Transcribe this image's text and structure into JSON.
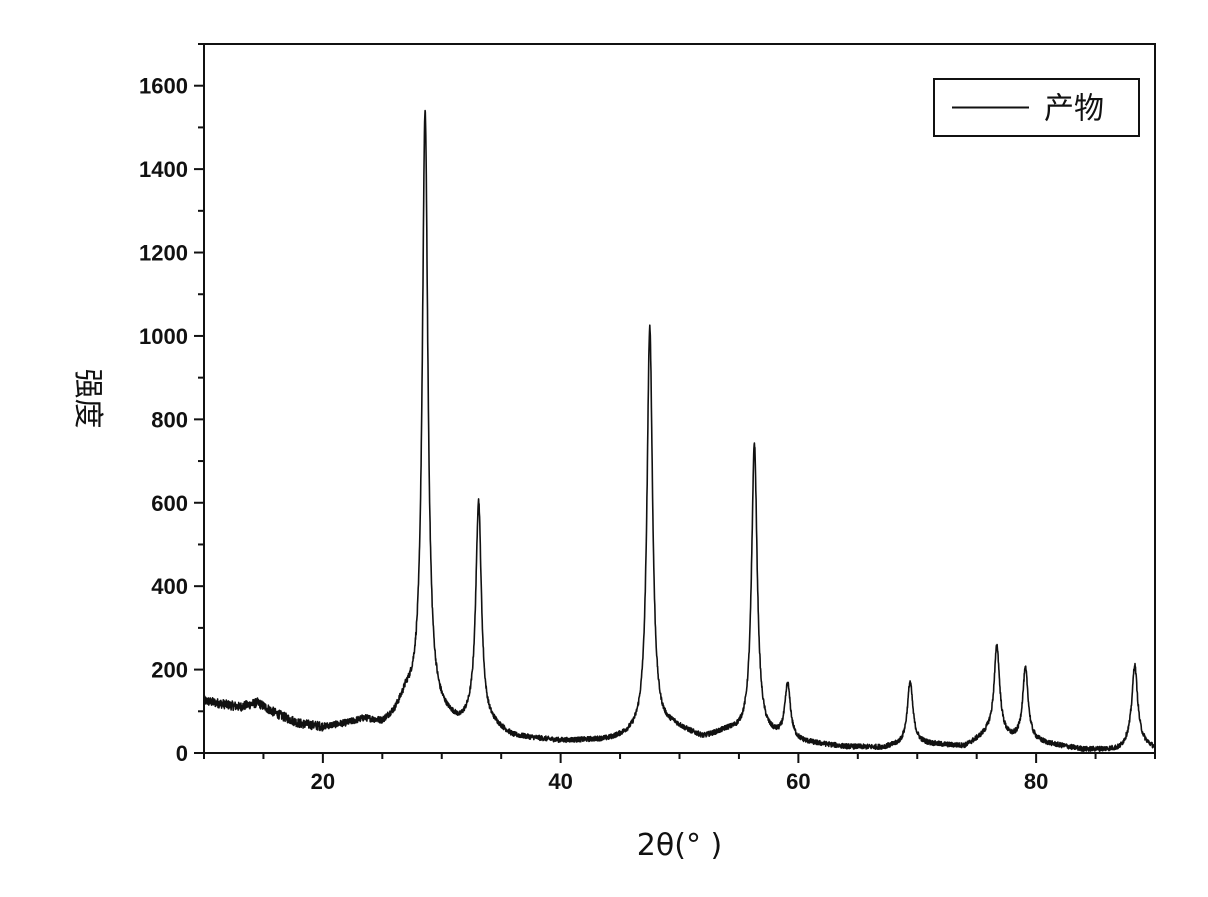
{
  "chart_data": {
    "type": "line",
    "title": "",
    "xlabel": "2θ(° )",
    "ylabel": "强度",
    "xlim": [
      10,
      90
    ],
    "ylim": [
      0,
      1700
    ],
    "x_ticks": [
      20,
      40,
      60,
      80
    ],
    "x_ticks_minor_step": 5,
    "y_ticks": [
      0,
      200,
      400,
      600,
      800,
      1000,
      1200,
      1400,
      1600
    ],
    "y_ticks_minor_step": 100,
    "grid": false,
    "legend": {
      "position": "top-right",
      "entries": [
        "产物"
      ]
    },
    "series": [
      {
        "name": "产物",
        "color": "#111111",
        "baseline": [
          [
            10,
            125
          ],
          [
            12,
            115
          ],
          [
            13,
            110
          ],
          [
            14.5,
            120
          ],
          [
            16,
            95
          ],
          [
            18,
            70
          ],
          [
            20,
            62
          ],
          [
            22,
            70
          ],
          [
            23.5,
            80
          ],
          [
            25,
            70
          ],
          [
            26,
            90
          ],
          [
            27,
            130
          ],
          [
            30.5,
            80
          ],
          [
            31.5,
            65
          ],
          [
            32.5,
            75
          ],
          [
            34.5,
            60
          ],
          [
            36,
            38
          ],
          [
            40,
            28
          ],
          [
            44,
            30
          ],
          [
            46,
            40
          ],
          [
            49.5,
            60
          ],
          [
            52,
            35
          ],
          [
            54,
            50
          ],
          [
            58,
            35
          ],
          [
            60,
            25
          ],
          [
            64,
            14
          ],
          [
            67,
            12
          ],
          [
            70,
            22
          ],
          [
            74,
            15
          ],
          [
            76,
            45
          ],
          [
            78,
            30
          ],
          [
            80,
            25
          ],
          [
            84,
            8
          ],
          [
            87,
            8
          ],
          [
            88.2,
            30
          ],
          [
            90,
            10
          ]
        ],
        "peaks": [
          {
            "x": 28.6,
            "y": 1540
          },
          {
            "x": 33.1,
            "y": 600
          },
          {
            "x": 47.5,
            "y": 1020
          },
          {
            "x": 56.3,
            "y": 740
          },
          {
            "x": 59.1,
            "y": 160
          },
          {
            "x": 69.4,
            "y": 170
          },
          {
            "x": 76.7,
            "y": 255
          },
          {
            "x": 79.1,
            "y": 200
          },
          {
            "x": 88.3,
            "y": 210
          }
        ]
      }
    ]
  }
}
